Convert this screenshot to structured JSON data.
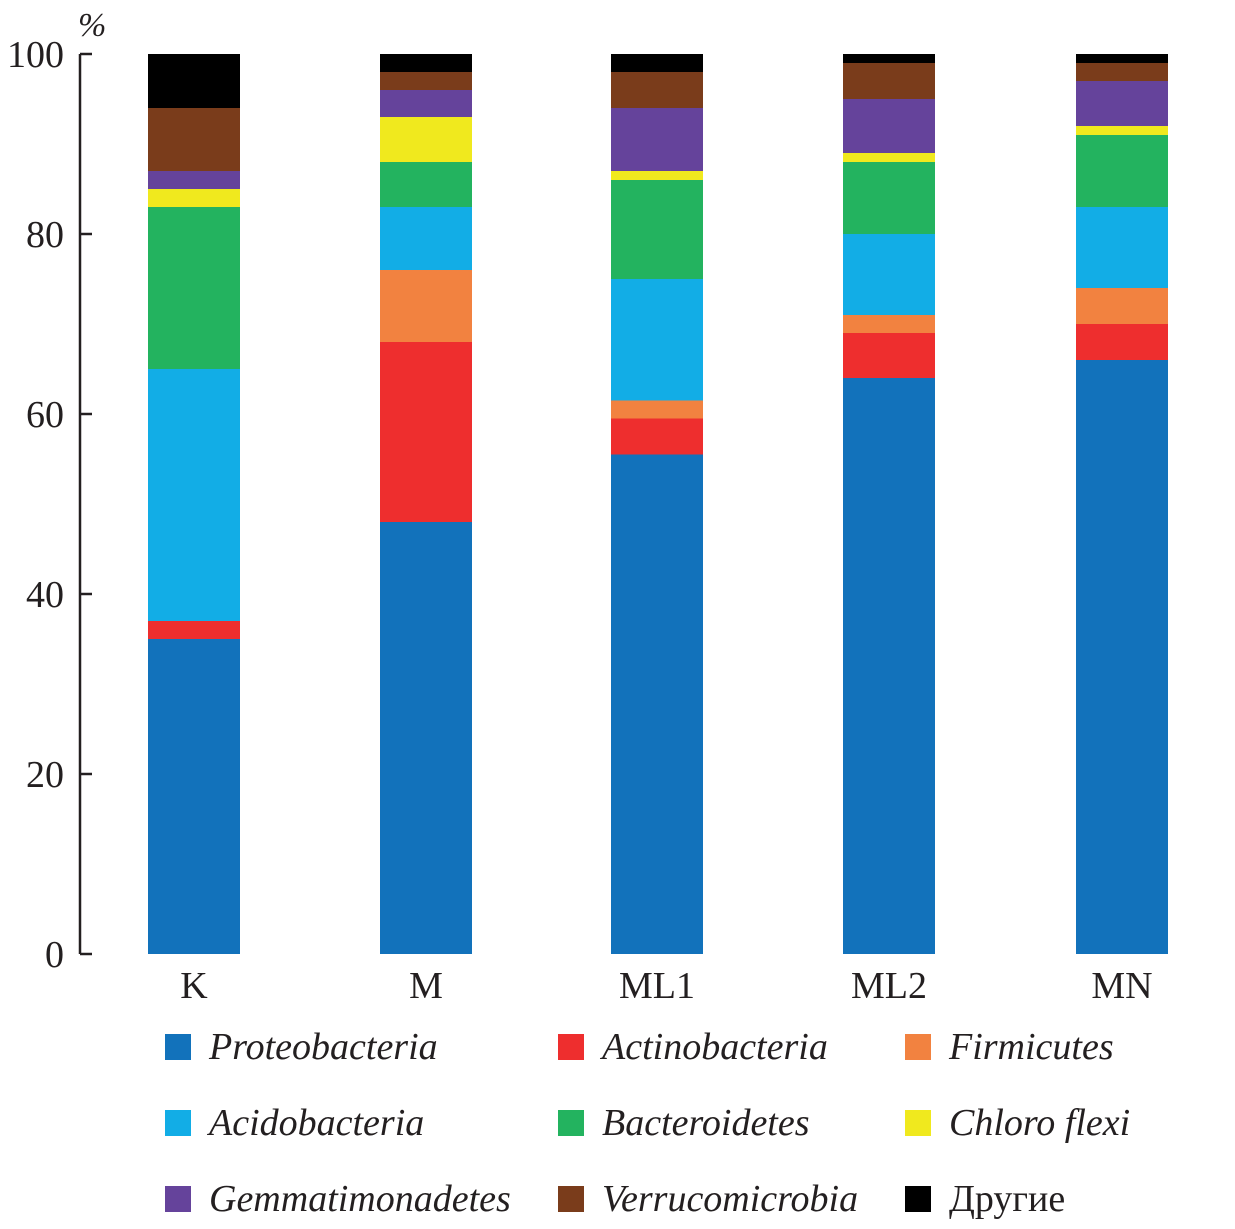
{
  "chart_data": {
    "type": "bar",
    "stacked": true,
    "title": "",
    "xlabel": "",
    "ylabel": "%",
    "ylim": [
      0,
      100
    ],
    "yticks": [
      0,
      20,
      40,
      60,
      80,
      100
    ],
    "grid": false,
    "legend_position": "bottom",
    "categories": [
      "K",
      "M",
      "ML1",
      "ML2",
      "MN"
    ],
    "series": [
      {
        "name": "Proteobacteria",
        "color": "#1272bb",
        "italic": true,
        "values": [
          35,
          48,
          55.5,
          64,
          66
        ]
      },
      {
        "name": "Actinobacteria",
        "color": "#ee2e2e",
        "italic": true,
        "values": [
          2,
          20,
          4,
          5,
          4
        ]
      },
      {
        "name": "Firmicutes",
        "color": "#f28240",
        "italic": true,
        "values": [
          0,
          8,
          2,
          2,
          4
        ]
      },
      {
        "name": "Acidobacteria",
        "color": "#12ade6",
        "italic": true,
        "values": [
          28,
          7,
          13.5,
          9,
          9
        ]
      },
      {
        "name": "Bacteroidetes",
        "color": "#23b35f",
        "italic": true,
        "values": [
          18,
          5,
          11,
          8,
          8
        ]
      },
      {
        "name": "Chloro flexi",
        "color": "#f0e91e",
        "italic": true,
        "values": [
          2,
          5,
          1,
          1,
          1
        ]
      },
      {
        "name": "Gemmatimonadetes",
        "color": "#65439b",
        "italic": true,
        "values": [
          2,
          3,
          7,
          6,
          5
        ]
      },
      {
        "name": "Verrucomicrobia",
        "color": "#7a3c1b",
        "italic": true,
        "values": [
          7,
          2,
          4,
          4,
          2
        ]
      },
      {
        "name": "Другие",
        "color": "#000000",
        "italic": false,
        "values": [
          6,
          2,
          2,
          1,
          1
        ]
      }
    ]
  }
}
